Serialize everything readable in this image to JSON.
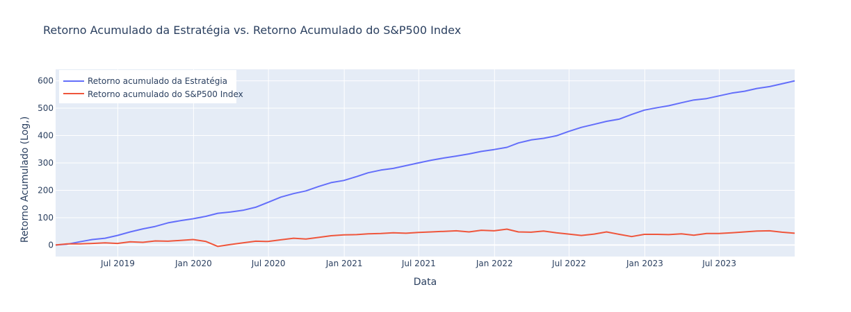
{
  "colors": {
    "plot_bg": "#E5ECF6",
    "grid": "#ffffff",
    "text": "#2a3f5f",
    "strategy": "#636EFA",
    "sp500": "#EF553B"
  },
  "chart_data": {
    "type": "line",
    "title": "Retorno Acumulado da Estratégia vs. Retorno Acumulado do S&P500 Index",
    "xlabel": "Data",
    "ylabel": "Retorno Acumulado    (Log,)",
    "xlim": [
      "2019-01-31",
      "2023-12-31"
    ],
    "ylim": [
      -42,
      642
    ],
    "yticks": [
      0,
      100,
      200,
      300,
      400,
      500,
      600
    ],
    "xticks": [
      {
        "date": "2019-07-01",
        "label": "Jul 2019"
      },
      {
        "date": "2020-01-01",
        "label": "Jan 2020"
      },
      {
        "date": "2020-07-01",
        "label": "Jul 2020"
      },
      {
        "date": "2021-01-01",
        "label": "Jan 2021"
      },
      {
        "date": "2021-07-01",
        "label": "Jul 2021"
      },
      {
        "date": "2022-01-01",
        "label": "Jan 2022"
      },
      {
        "date": "2022-07-01",
        "label": "Jul 2022"
      },
      {
        "date": "2023-01-01",
        "label": "Jan 2023"
      },
      {
        "date": "2023-07-01",
        "label": "Jul 2023"
      }
    ],
    "grid": true,
    "legend_position": "top-left",
    "x": [
      "2019-01-31",
      "2019-02-28",
      "2019-03-31",
      "2019-04-30",
      "2019-05-31",
      "2019-06-30",
      "2019-07-31",
      "2019-08-31",
      "2019-09-30",
      "2019-10-31",
      "2019-11-30",
      "2019-12-31",
      "2020-01-31",
      "2020-02-29",
      "2020-03-31",
      "2020-04-30",
      "2020-05-31",
      "2020-06-30",
      "2020-07-31",
      "2020-08-31",
      "2020-09-30",
      "2020-10-31",
      "2020-11-30",
      "2020-12-31",
      "2021-01-31",
      "2021-02-28",
      "2021-03-31",
      "2021-04-30",
      "2021-05-31",
      "2021-06-30",
      "2021-07-31",
      "2021-08-31",
      "2021-09-30",
      "2021-10-31",
      "2021-11-30",
      "2021-12-31",
      "2022-01-31",
      "2022-02-28",
      "2022-03-31",
      "2022-04-30",
      "2022-05-31",
      "2022-06-30",
      "2022-07-31",
      "2022-08-31",
      "2022-09-30",
      "2022-10-31",
      "2022-11-30",
      "2022-12-31",
      "2023-01-31",
      "2023-02-28",
      "2023-03-31",
      "2023-04-30",
      "2023-05-31",
      "2023-06-30",
      "2023-07-31",
      "2023-08-31",
      "2023-09-30",
      "2023-10-31",
      "2023-11-30",
      "2023-12-31"
    ],
    "series": [
      {
        "name": "Retorno acumulado da Estratégia",
        "color": "#636EFA",
        "values": [
          0,
          3,
          12,
          20,
          25,
          35,
          48,
          59,
          68,
          81,
          89,
          96,
          105,
          116,
          121,
          127,
          138,
          156,
          175,
          188,
          198,
          214,
          228,
          236,
          250,
          264,
          274,
          280,
          290,
          300,
          310,
          318,
          325,
          333,
          342,
          349,
          357,
          373,
          384,
          390,
          399,
          415,
          430,
          441,
          452,
          460,
          477,
          493,
          502,
          509,
          520,
          530,
          535,
          545,
          555,
          562,
          572,
          579,
          589,
          600
        ]
      },
      {
        "name": "Retorno acumulado do S&P500 Index",
        "color": "#EF553B",
        "values": [
          0,
          4,
          4,
          6,
          8,
          6,
          12,
          10,
          15,
          14,
          17,
          20,
          13,
          -5,
          2,
          8,
          14,
          13,
          19,
          25,
          22,
          28,
          34,
          37,
          38,
          41,
          42,
          45,
          43,
          46,
          48,
          50,
          52,
          48,
          54,
          52,
          58,
          48,
          47,
          51,
          45,
          40,
          35,
          40,
          48,
          39,
          31,
          39,
          39,
          38,
          41,
          36,
          42,
          42,
          45,
          48,
          51,
          52,
          47,
          43
        ]
      }
    ]
  }
}
